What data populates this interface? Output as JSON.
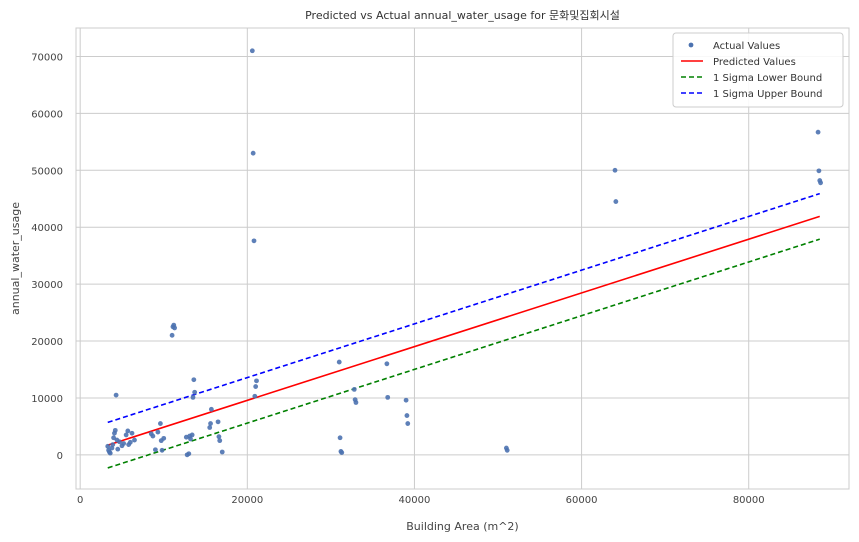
{
  "chart_data": {
    "type": "scatter",
    "title": "Predicted vs Actual annual_water_usage for 문화및집회시설",
    "xlabel": "Building Area (m^2)",
    "ylabel": "annual_water_usage",
    "xlim": [
      -500,
      92000
    ],
    "ylim": [
      -6000,
      75000
    ],
    "xticks": [
      0,
      20000,
      40000,
      60000,
      80000
    ],
    "yticks": [
      0,
      10000,
      20000,
      30000,
      40000,
      50000,
      60000,
      70000
    ],
    "grid": true,
    "legend_position": "top-right",
    "legend": [
      {
        "label": "Actual Values",
        "kind": "marker",
        "color": "#4c72b0"
      },
      {
        "label": "Predicted Values",
        "kind": "line",
        "color": "#ff0000",
        "dash": "solid"
      },
      {
        "label": "1 Sigma Lower Bound",
        "kind": "line",
        "color": "#008000",
        "dash": "dashed"
      },
      {
        "label": "1 Sigma Upper Bound",
        "kind": "line",
        "color": "#0000ff",
        "dash": "dashed"
      }
    ],
    "actual": [
      [
        3300,
        1500
      ],
      [
        3400,
        800
      ],
      [
        3500,
        500
      ],
      [
        3600,
        300
      ],
      [
        3800,
        1200
      ],
      [
        3900,
        1800
      ],
      [
        4000,
        3000
      ],
      [
        4100,
        3800
      ],
      [
        4200,
        4300
      ],
      [
        4300,
        10500
      ],
      [
        4400,
        2600
      ],
      [
        4500,
        1000
      ],
      [
        4700,
        2300
      ],
      [
        5000,
        1600
      ],
      [
        5200,
        2000
      ],
      [
        5500,
        3500
      ],
      [
        5700,
        4200
      ],
      [
        5800,
        1800
      ],
      [
        6000,
        2200
      ],
      [
        6200,
        3800
      ],
      [
        6500,
        2600
      ],
      [
        8500,
        3700
      ],
      [
        8700,
        3300
      ],
      [
        9000,
        900
      ],
      [
        9300,
        4000
      ],
      [
        9600,
        5500
      ],
      [
        9700,
        2500
      ],
      [
        9800,
        800
      ],
      [
        10000,
        2900
      ],
      [
        11000,
        21000
      ],
      [
        11100,
        22500
      ],
      [
        11200,
        22800
      ],
      [
        11300,
        22300
      ],
      [
        12700,
        3100
      ],
      [
        12800,
        0
      ],
      [
        13000,
        200
      ],
      [
        13100,
        3300
      ],
      [
        13200,
        2800
      ],
      [
        13400,
        3500
      ],
      [
        13500,
        10100
      ],
      [
        13600,
        13200
      ],
      [
        13700,
        11000
      ],
      [
        15500,
        4800
      ],
      [
        15600,
        5500
      ],
      [
        15700,
        8000
      ],
      [
        16500,
        5800
      ],
      [
        16600,
        3200
      ],
      [
        16700,
        2500
      ],
      [
        17000,
        500
      ],
      [
        20600,
        71000
      ],
      [
        20700,
        53000
      ],
      [
        20800,
        37600
      ],
      [
        20900,
        10300
      ],
      [
        21000,
        12000
      ],
      [
        21100,
        13000
      ],
      [
        31000,
        16300
      ],
      [
        31100,
        3000
      ],
      [
        31200,
        600
      ],
      [
        31300,
        400
      ],
      [
        32800,
        11500
      ],
      [
        32900,
        9700
      ],
      [
        33000,
        9200
      ],
      [
        36700,
        16000
      ],
      [
        36800,
        10100
      ],
      [
        39000,
        9600
      ],
      [
        39100,
        6900
      ],
      [
        39200,
        5500
      ],
      [
        51000,
        1200
      ],
      [
        51100,
        800
      ],
      [
        64000,
        50000
      ],
      [
        64100,
        44500
      ],
      [
        88300,
        56700
      ],
      [
        88400,
        49900
      ],
      [
        88500,
        48200
      ],
      [
        88600,
        47800
      ]
    ],
    "predicted": {
      "x": [
        3300,
        88500
      ],
      "y": [
        1700,
        41900
      ]
    },
    "lower_bound": {
      "x": [
        3300,
        88500
      ],
      "y": [
        -2300,
        37900
      ]
    },
    "upper_bound": {
      "x": [
        3300,
        88500
      ],
      "y": [
        5700,
        45900
      ]
    }
  }
}
